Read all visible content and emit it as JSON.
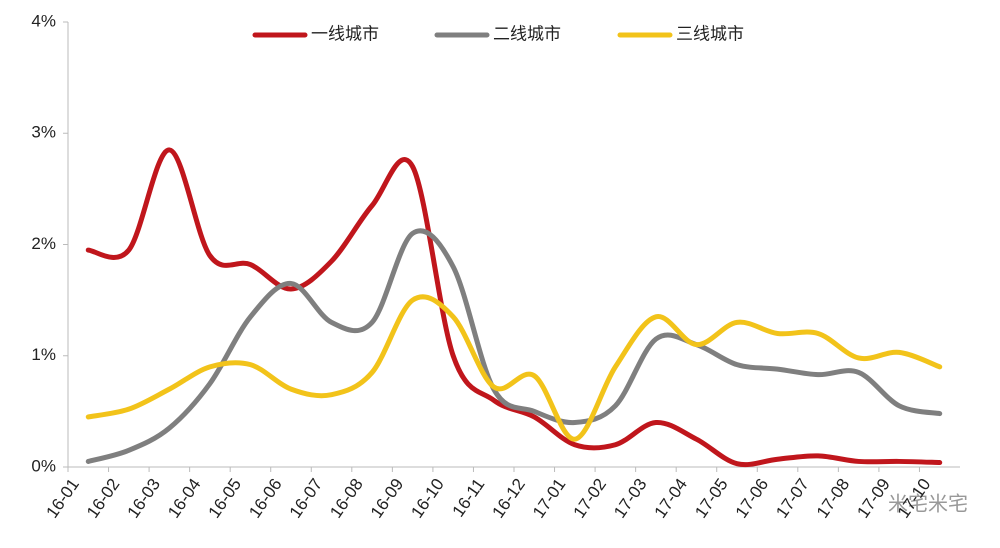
{
  "chart_data": {
    "type": "line",
    "categories": [
      "16-01",
      "16-02",
      "16-03",
      "16-04",
      "16-05",
      "16-06",
      "16-07",
      "16-08",
      "16-09",
      "16-10",
      "16-11",
      "16-12",
      "17-01",
      "17-02",
      "17-03",
      "17-04",
      "17-05",
      "17-06",
      "17-07",
      "17-08",
      "17-09",
      "17-10"
    ],
    "series": [
      {
        "name": "一线城市",
        "color": "#c0161c",
        "values": [
          1.95,
          1.95,
          2.85,
          1.9,
          1.82,
          1.6,
          1.85,
          2.35,
          2.7,
          1.0,
          0.6,
          0.45,
          0.2,
          0.2,
          0.4,
          0.25,
          0.03,
          0.07,
          0.1,
          0.05,
          0.05,
          0.04
        ]
      },
      {
        "name": "二线城市",
        "color": "#7f7f7f",
        "values": [
          0.05,
          0.15,
          0.35,
          0.75,
          1.35,
          1.65,
          1.3,
          1.3,
          2.1,
          1.8,
          0.7,
          0.5,
          0.4,
          0.55,
          1.15,
          1.1,
          0.92,
          0.88,
          0.83,
          0.85,
          0.55,
          0.48
        ]
      },
      {
        "name": "三线城市",
        "color": "#f2c31a",
        "values": [
          0.45,
          0.52,
          0.7,
          0.9,
          0.92,
          0.7,
          0.65,
          0.85,
          1.5,
          1.35,
          0.72,
          0.82,
          0.25,
          0.9,
          1.35,
          1.1,
          1.3,
          1.2,
          1.2,
          0.98,
          1.03,
          0.9
        ]
      }
    ],
    "ylim": [
      0,
      4
    ],
    "yticks": [
      {
        "value": 0,
        "label": "0%"
      },
      {
        "value": 1,
        "label": "1%"
      },
      {
        "value": 2,
        "label": "2%"
      },
      {
        "value": 3,
        "label": "3%"
      },
      {
        "value": 4,
        "label": "4%"
      }
    ],
    "legend": "top",
    "watermark": "米宅米宅"
  }
}
